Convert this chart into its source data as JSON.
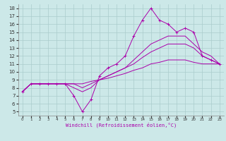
{
  "xlabel": "Windchill (Refroidissement éolien,°C)",
  "bg_color": "#cce8e8",
  "grid_color": "#aacccc",
  "line_color": "#aa00aa",
  "xlim": [
    -0.5,
    23.5
  ],
  "ylim": [
    4.5,
    18.5
  ],
  "yticks": [
    5,
    6,
    7,
    8,
    9,
    10,
    11,
    12,
    13,
    14,
    15,
    16,
    17,
    18
  ],
  "xticks": [
    0,
    1,
    2,
    3,
    4,
    5,
    6,
    7,
    8,
    9,
    10,
    11,
    12,
    13,
    14,
    15,
    16,
    17,
    18,
    19,
    20,
    21,
    22,
    23
  ],
  "lines": [
    {
      "x": [
        0,
        1,
        2,
        3,
        4,
        5,
        6,
        7,
        8,
        9,
        10,
        11,
        12,
        13,
        14,
        15,
        16,
        17,
        18,
        19,
        20,
        21,
        22,
        23
      ],
      "y": [
        7.5,
        8.5,
        8.5,
        8.5,
        8.5,
        8.5,
        7.0,
        5.0,
        6.5,
        9.5,
        10.5,
        11.0,
        12.0,
        14.5,
        16.5,
        18.0,
        16.5,
        16.0,
        15.0,
        15.5,
        15.0,
        12.0,
        11.5,
        11.0
      ],
      "marker": "+"
    },
    {
      "x": [
        0,
        1,
        2,
        3,
        4,
        5,
        6,
        7,
        8,
        9,
        10,
        11,
        12,
        13,
        14,
        15,
        16,
        17,
        18,
        19,
        20,
        21,
        22,
        23
      ],
      "y": [
        7.5,
        8.5,
        8.5,
        8.5,
        8.5,
        8.5,
        8.0,
        7.5,
        8.0,
        9.0,
        9.5,
        10.0,
        10.5,
        11.5,
        12.5,
        13.5,
        14.0,
        14.5,
        14.5,
        14.5,
        13.5,
        12.5,
        12.0,
        11.0
      ],
      "marker": null
    },
    {
      "x": [
        0,
        1,
        2,
        3,
        4,
        5,
        6,
        7,
        8,
        9,
        10,
        11,
        12,
        13,
        14,
        15,
        16,
        17,
        18,
        19,
        20,
        21,
        22,
        23
      ],
      "y": [
        7.5,
        8.5,
        8.5,
        8.5,
        8.5,
        8.5,
        8.5,
        8.0,
        8.5,
        9.0,
        9.5,
        10.0,
        10.5,
        11.0,
        11.8,
        12.5,
        13.0,
        13.5,
        13.5,
        13.5,
        13.0,
        12.0,
        11.5,
        11.0
      ],
      "marker": null
    },
    {
      "x": [
        0,
        1,
        2,
        3,
        4,
        5,
        6,
        7,
        8,
        9,
        10,
        11,
        12,
        13,
        14,
        15,
        16,
        17,
        18,
        19,
        20,
        21,
        22,
        23
      ],
      "y": [
        7.5,
        8.5,
        8.5,
        8.5,
        8.5,
        8.5,
        8.5,
        8.5,
        8.8,
        9.0,
        9.2,
        9.5,
        9.8,
        10.2,
        10.5,
        11.0,
        11.2,
        11.5,
        11.5,
        11.5,
        11.2,
        11.0,
        11.0,
        11.0
      ],
      "marker": null
    }
  ]
}
